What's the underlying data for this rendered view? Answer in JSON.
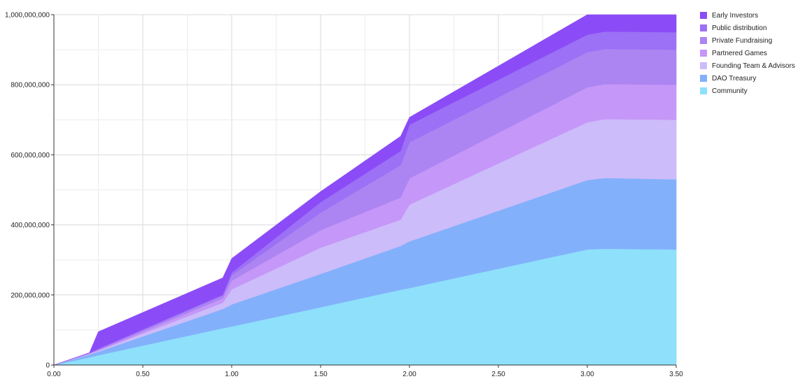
{
  "chart_data": {
    "type": "area",
    "stacked": true,
    "x": [
      0,
      0.2,
      0.25,
      0.95,
      1.0,
      1.5,
      1.95,
      2.0,
      3.0,
      3.1,
      3.5
    ],
    "xlim": [
      0,
      3.5
    ],
    "ylim": [
      0,
      1000000000
    ],
    "xticks": [
      "0.00",
      "0.50",
      "1.00",
      "1.50",
      "2.00",
      "2.50",
      "3.00",
      "3.50"
    ],
    "yticks": [
      "0",
      "200,000,000",
      "400,000,000",
      "600,000,000",
      "800,000,000",
      "1,000,000,000"
    ],
    "grid": true,
    "legend_position": "top-right",
    "series": [
      {
        "name": "Community",
        "color": "#8ee0fb",
        "values": [
          0,
          22000000,
          28000000,
          105000000,
          110000000,
          165000000,
          215000000,
          220000000,
          330000000,
          332000000,
          330000000
        ]
      },
      {
        "name": "DAO Treasury",
        "color": "#83b0fb",
        "values": [
          0,
          8000000,
          10000000,
          55000000,
          63000000,
          95000000,
          125000000,
          133000000,
          198000000,
          202000000,
          200000000
        ]
      },
      {
        "name": "Founding Team & Advisors",
        "color": "#ccbcfa",
        "values": [
          0,
          2000000,
          3000000,
          18000000,
          43000000,
          75000000,
          75000000,
          105000000,
          165000000,
          168000000,
          170000000
        ]
      },
      {
        "name": "Partnered Games",
        "color": "#c597f8",
        "values": [
          0,
          1000000,
          2000000,
          12000000,
          25000000,
          50000000,
          63000000,
          75000000,
          100000000,
          100000000,
          100000000
        ]
      },
      {
        "name": "Private Fundraising",
        "color": "#ac85f2",
        "values": [
          0,
          1000000,
          2000000,
          8000000,
          15000000,
          50000000,
          93000000,
          103000000,
          100000000,
          100000000,
          100000000
        ]
      },
      {
        "name": "Public distribution",
        "color": "#9c71f5",
        "values": [
          0,
          1000000,
          2000000,
          3000000,
          8000000,
          30000000,
          40000000,
          50000000,
          50000000,
          50000000,
          50000000
        ]
      },
      {
        "name": "Early Investors",
        "color": "#8b4cf7",
        "values": [
          0,
          0,
          48000000,
          48000000,
          40000000,
          30000000,
          42000000,
          21000000,
          57000000,
          48000000,
          50000000
        ]
      }
    ]
  }
}
